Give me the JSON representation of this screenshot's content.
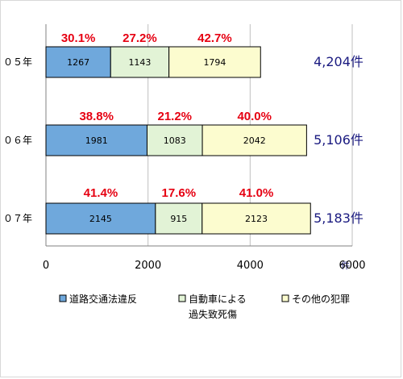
{
  "chart_data": {
    "type": "bar",
    "orientation": "horizontal",
    "stacked": true,
    "categories": [
      "０５年",
      "０６年",
      "０７年"
    ],
    "series": [
      {
        "name": "道路交通法違反",
        "values": [
          1267,
          1981,
          2145
        ],
        "color": "#6fa8dc"
      },
      {
        "name": "自動車による過失致死傷",
        "values": [
          1143,
          1083,
          915
        ],
        "color": "#e2f3d6"
      },
      {
        "name": "その他の犯罪",
        "values": [
          1794,
          2042,
          2123
        ],
        "color": "#fcfccf"
      }
    ],
    "percent_labels": [
      [
        "30.1%",
        "27.2%",
        "42.7%"
      ],
      [
        "38.8%",
        "21.2%",
        "40.0%"
      ],
      [
        "41.4%",
        "17.6%",
        "41.0%"
      ]
    ],
    "totals": [
      "4,204件",
      "5,106件",
      "5,183件"
    ],
    "xlim": [
      0,
      6000
    ],
    "xticks": [
      0,
      2000,
      4000,
      6000
    ],
    "xunit": "件",
    "grid": true,
    "legend": {
      "position": "bottom",
      "entries": [
        {
          "lines": [
            "道路交通法違反"
          ]
        },
        {
          "lines": [
            "自動車による",
            "過失致死傷"
          ]
        },
        {
          "lines": [
            "その他の犯罪"
          ]
        }
      ]
    },
    "colors": {
      "percent": "#e60012",
      "totals": "#1a1a80",
      "border": "#000000",
      "grid": "#bfbfbf"
    }
  }
}
